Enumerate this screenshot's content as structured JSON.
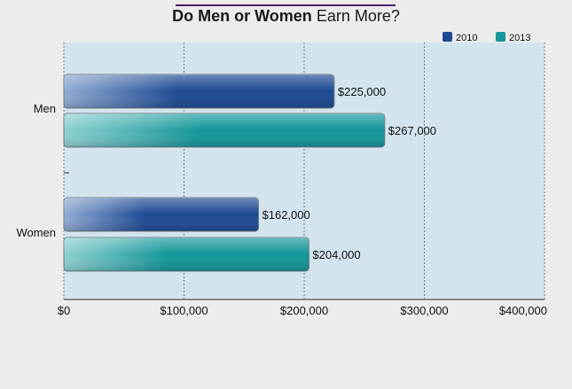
{
  "chart_data": {
    "type": "bar",
    "orientation": "horizontal",
    "title_bold": "Do Men or Women",
    "title_rest": "Earn More?",
    "categories": [
      "Men",
      "Women"
    ],
    "series": [
      {
        "name": "2010",
        "values": [
          225000,
          162000
        ],
        "color": "#1d4a93",
        "light": "#8fa9d2"
      },
      {
        "name": "2013",
        "values": [
          267000,
          204000
        ],
        "color": "#14969a",
        "light": "#8ed0d0"
      }
    ],
    "data_labels": [
      [
        "$225,000",
        "$162,000"
      ],
      [
        "$267,000",
        "$204,000"
      ]
    ],
    "x_ticks": [
      {
        "value": 0,
        "label": "$0"
      },
      {
        "value": 100000,
        "label": "$100,000"
      },
      {
        "value": 200000,
        "label": "$200,000"
      },
      {
        "value": 300000,
        "label": "$300,000"
      },
      {
        "value": 400000,
        "label": "$400,000"
      }
    ],
    "xlim": [
      0,
      400000
    ],
    "grid": true,
    "legend_position": "top-right",
    "plot_background": "#d3e4ee"
  }
}
